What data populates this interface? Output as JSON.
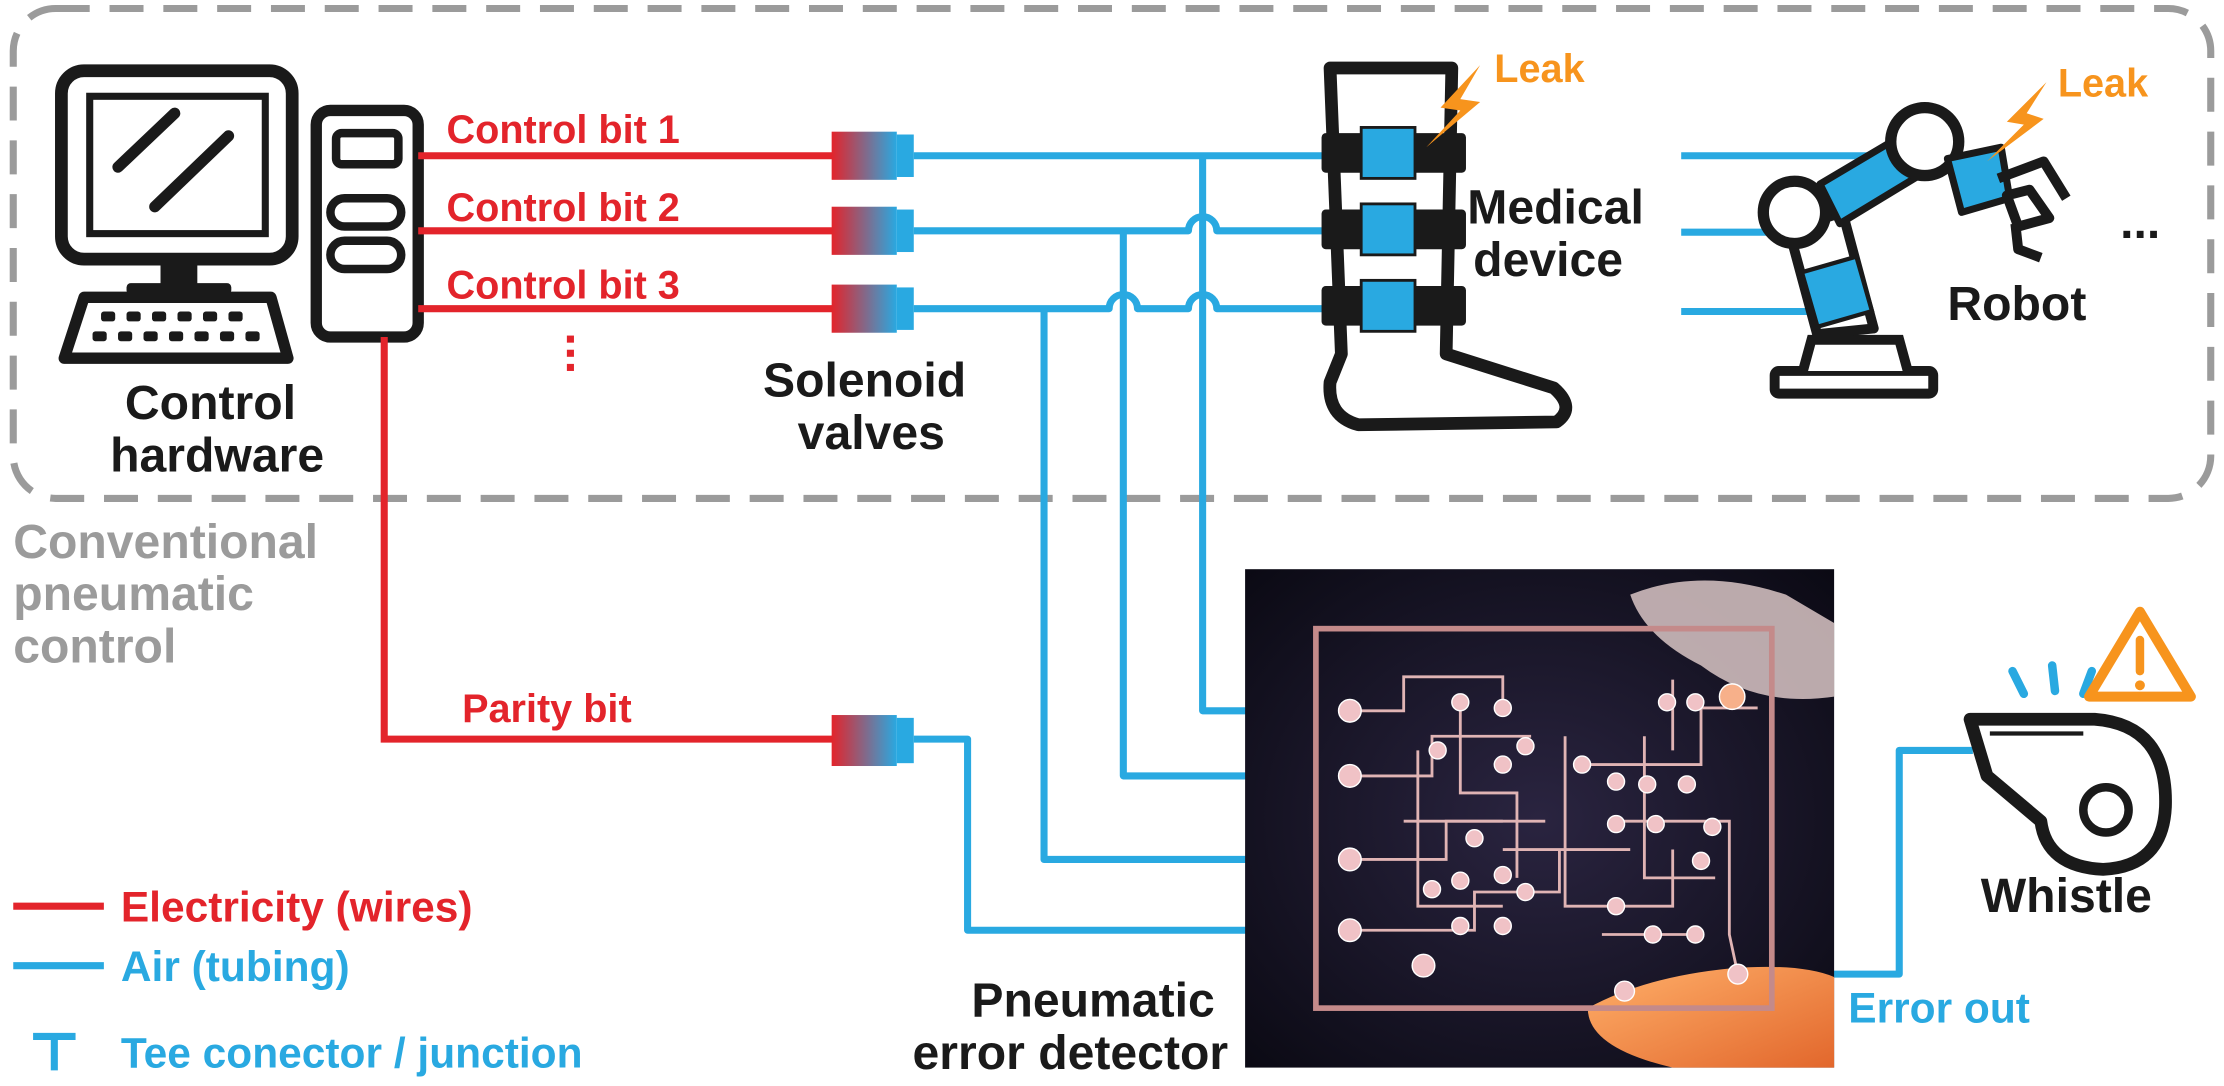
{
  "labels": {
    "control_hardware": [
      "Control",
      "hardware"
    ],
    "control_bit_1": "Control bit 1",
    "control_bit_2": "Control bit 2",
    "control_bit_3": "Control bit 3",
    "continuation_dots": "⋮",
    "solenoid_valves": [
      "Solenoid",
      "valves"
    ],
    "medical_device": [
      "Medical",
      "device"
    ],
    "robot": "Robot",
    "ellipsis": "...",
    "leak_1": "Leak",
    "leak_2": "Leak",
    "conventional_control": [
      "Conventional",
      "pneumatic",
      "control"
    ],
    "parity_bit": "Parity bit",
    "pneumatic_detector": [
      "Pneumatic",
      "error detector"
    ],
    "error_out": "Error out",
    "whistle": "Whistle"
  },
  "legend": [
    {
      "label": "Electricity (wires)",
      "color": "#e3242b",
      "symbol": "line"
    },
    {
      "label": "Air (tubing)",
      "color": "#29a9e1",
      "symbol": "line"
    },
    {
      "label": "Tee conector / junction",
      "color": "#29a9e1",
      "symbol": "tee"
    }
  ],
  "colors": {
    "wire": "#e3242b",
    "tubing": "#29a9e1",
    "leak": "#f7941d",
    "dashed_box": "#9b9b9b",
    "ink": "#1a1a1a",
    "warning": "#f7941d"
  },
  "icons": [
    "computer-monitor-icon",
    "keyboard-icon",
    "tower-icon",
    "solenoid-valve-icon",
    "leg-brace-icon",
    "robot-arm-icon",
    "lightning-icon",
    "whistle-icon",
    "warning-icon",
    "chip-photo"
  ]
}
